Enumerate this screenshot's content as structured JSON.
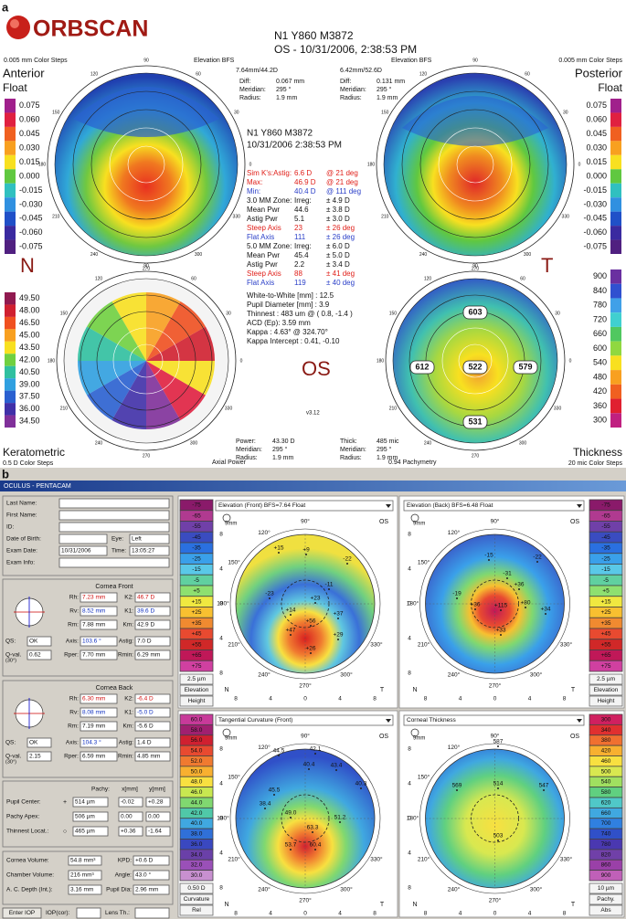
{
  "labels": {
    "a": "a",
    "b": "b"
  },
  "orbscan": {
    "logo": "ORBSCAN",
    "header": [
      "N1 Y860 M3872",
      "OS - 10/31/2006, 2:38:53 PM"
    ],
    "top_left": {
      "steps": "0.005 mm Color Steps",
      "title": "Anterior",
      "subtitle": "Float",
      "ref": "Elevation BFS",
      "bfs": "7.64mm/44.2D"
    },
    "top_right": {
      "steps": "0.005 mm Color Steps",
      "title": "Posterior",
      "subtitle": "Float",
      "ref": "Elevation BFS",
      "bfs": "6.42mm/52.6D"
    },
    "diff_left": [
      [
        "Diff:",
        "0.067 mm"
      ],
      [
        "Meridian:",
        "295 °"
      ],
      [
        "Radius:",
        "1.9 mm"
      ]
    ],
    "diff_right": [
      [
        "Diff:",
        "0.131 mm"
      ],
      [
        "Meridian:",
        "295 °"
      ],
      [
        "Radius:",
        "1.9 mm"
      ]
    ],
    "center_header": [
      "N1 Y860 M3872",
      "10/31/2006 2:38:53 PM"
    ],
    "stats": [
      {
        "cells": [
          "Sim K's:Astig:",
          "6.6 D",
          "@ 21 deg"
        ],
        "color": "#e0201a"
      },
      {
        "cells": [
          "Max:",
          "46.9 D",
          "@ 21 deg"
        ],
        "color": "#e0201a"
      },
      {
        "cells": [
          "Min:",
          "40.4 D",
          "@ 111 deg"
        ],
        "color": "#2a3fc8"
      },
      {
        "cells": [
          "3.0 MM Zone:",
          "Irreg:",
          "± 4.9 D"
        ],
        "color": "#111111"
      },
      {
        "cells": [
          "Mean Pwr",
          "44.6",
          "± 3.8 D"
        ],
        "color": "#111111"
      },
      {
        "cells": [
          "Astig Pwr",
          "5.1",
          "± 3.0 D"
        ],
        "color": "#111111"
      },
      {
        "cells": [
          "Steep Axis",
          "23",
          "± 26 deg"
        ],
        "color": "#e0201a"
      },
      {
        "cells": [
          "Flat Axis",
          "111",
          "± 26 deg"
        ],
        "color": "#2a3fc8"
      },
      {
        "cells": [
          "5.0 MM Zone:",
          "Irreg:",
          "± 6.0 D"
        ],
        "color": "#111111"
      },
      {
        "cells": [
          "Mean Pwr",
          "45.4",
          "± 5.0 D"
        ],
        "color": "#111111"
      },
      {
        "cells": [
          "Astig Pwr",
          "2.2",
          "± 3.4 D"
        ],
        "color": "#111111"
      },
      {
        "cells": [
          "Steep Axis",
          "88",
          "± 41 deg"
        ],
        "color": "#e0201a"
      },
      {
        "cells": [
          "Flat Axis",
          "119",
          "± 40 deg"
        ],
        "color": "#2a3fc8"
      }
    ],
    "info": [
      "White-to-White [mm] : 12.5",
      "Pupil Diameter [mm] : 3.9",
      "Thinnest : 483 um @ ( 0.8, -1.4 )",
      "ACD (Ep): 3.59 mm",
      "Kappa : 4.63° @ 324.70°",
      "Kappa Intercept : 0.41, -0.10"
    ],
    "nasal": "N",
    "temporal": "T",
    "eye": "OS",
    "version": "v3.12",
    "bottom_left": {
      "title": "Keratometric",
      "steps": "0.5 D Color Steps",
      "ref": "Axial Power"
    },
    "power": [
      [
        "Power:",
        "43.30 D"
      ],
      [
        "Meridian:",
        "295 °"
      ],
      [
        "Radius:",
        "1.9 mm"
      ]
    ],
    "thick": [
      [
        "Thick:",
        "485 mic"
      ],
      [
        "Meridian:",
        "295 °"
      ],
      [
        "Radius:",
        "1.9 mm"
      ]
    ],
    "bottom_right": {
      "ref": "0.94 Pachymetry",
      "title": "Thickness",
      "steps": "20 mic Color Steps"
    },
    "angles": [
      "0",
      "30",
      "60",
      "90",
      "120",
      "150",
      "180",
      "210",
      "240",
      "270",
      "300",
      "330"
    ],
    "thickness_values": [
      "603",
      "612",
      "522",
      "579",
      "531"
    ],
    "scale_float": {
      "labels": [
        "0.075",
        "0.060",
        "0.045",
        "0.030",
        "0.015",
        "0.000",
        "-0.015",
        "-0.030",
        "-0.045",
        "-0.060",
        "-0.075"
      ],
      "colors": [
        "#a0208c",
        "#e02040",
        "#f06020",
        "#f8a020",
        "#f8e020",
        "#60c840",
        "#30c0c0",
        "#3090e0",
        "#2050c8",
        "#3a2aa0",
        "#502080"
      ]
    },
    "scale_kerat": {
      "labels": [
        "49.50",
        "48.00",
        "46.50",
        "45.00",
        "43.50",
        "42.00",
        "40.50",
        "39.00",
        "37.50",
        "36.00",
        "34.50"
      ],
      "colors": [
        "#901a50",
        "#d02030",
        "#f05020",
        "#f8a020",
        "#f8e020",
        "#70d040",
        "#30c0a0",
        "#30a0e0",
        "#2a60d0",
        "#4030a8",
        "#80309a"
      ]
    },
    "scale_thick": {
      "labels": [
        "900",
        "840",
        "780",
        "720",
        "660",
        "600",
        "540",
        "480",
        "420",
        "360",
        "300"
      ],
      "colors": [
        "#6a30a0",
        "#3050d0",
        "#40a0e8",
        "#40d0d0",
        "#50c860",
        "#90d840",
        "#f8e020",
        "#f8a020",
        "#f06020",
        "#e02030",
        "#c02080"
      ]
    }
  },
  "pentacam": {
    "title": "OCULUS - PENTACAM",
    "patient": [
      [
        {
          "label": "Last Name:"
        }
      ],
      [
        {
          "label": "First Name:"
        }
      ],
      [
        {
          "label": "ID:"
        }
      ],
      [
        {
          "label": "Date of Birth:"
        },
        {
          "label": "Eye:",
          "value": "Left"
        }
      ],
      [
        {
          "label": "Exam Date:",
          "value": "10/31/2006"
        },
        {
          "label": "Time:",
          "value": "13:05:27"
        }
      ],
      [
        {
          "label": "Exam Info:"
        }
      ]
    ],
    "cornea_front": {
      "title": "Cornea Front",
      "rows": [
        [
          {
            "label": "Rh:",
            "value": "7.23 mm",
            "color": "#d01010"
          },
          {
            "label": "K2:",
            "value": "46.7 D",
            "color": "#d01010"
          }
        ],
        [
          {
            "label": "Rv:",
            "value": "8.52 mm",
            "color": "#1030c0"
          },
          {
            "label": "K1:",
            "value": "39.6 D",
            "color": "#1030c0"
          }
        ],
        [
          {
            "label": "Rm:",
            "value": "7.88 mm",
            "color": "#111111"
          },
          {
            "label": "Km:",
            "value": "42.9 D",
            "color": "#111111"
          }
        ],
        [
          {
            "label": "QS:",
            "value": "OK",
            "color": "#111111"
          },
          {
            "label": "Axis:",
            "value": "103.6 °",
            "color": "#1030c0"
          },
          {
            "label": "Astig:",
            "value": "7.0 D",
            "color": "#111111"
          }
        ],
        [
          {
            "label": "Q-val.",
            "label2": "(30°)",
            "value": "0.62",
            "color": "#111111"
          },
          {
            "label": "Rper:",
            "value": "7.70 mm",
            "color": "#111111"
          },
          {
            "label": "Rmin:",
            "value": "6.29 mm",
            "color": "#111111"
          }
        ]
      ]
    },
    "cornea_back": {
      "title": "Cornea Back",
      "rows": [
        [
          {
            "label": "Rh:",
            "value": "6.30 mm",
            "color": "#d01010"
          },
          {
            "label": "K2:",
            "value": "-6.4 D",
            "color": "#d01010"
          }
        ],
        [
          {
            "label": "Rv:",
            "value": "8.08 mm",
            "color": "#1030c0"
          },
          {
            "label": "K1:",
            "value": "-5.0 D",
            "color": "#1030c0"
          }
        ],
        [
          {
            "label": "Rm:",
            "value": "7.19 mm",
            "color": "#111111"
          },
          {
            "label": "Km:",
            "value": "-5.6 D",
            "color": "#111111"
          }
        ],
        [
          {
            "label": "QS:",
            "value": "OK",
            "color": "#111111"
          },
          {
            "label": "Axis:",
            "value": "104.3 °",
            "color": "#1030c0"
          },
          {
            "label": "Astig:",
            "value": "1.4 D",
            "color": "#111111"
          }
        ],
        [
          {
            "label": "Q-val.",
            "label2": "(30°)",
            "value": "2.15",
            "color": "#111111"
          },
          {
            "label": "Rper:",
            "value": "6.59 mm",
            "color": "#111111"
          },
          {
            "label": "Rmin:",
            "value": "4.85 mm",
            "color": "#111111"
          }
        ]
      ]
    },
    "pachy": {
      "header": [
        "Pachy:",
        "x[mm]",
        "y[mm]"
      ],
      "rows": [
        {
          "label": "Pupil Center:",
          "symbol": "+",
          "pachy": "514 µm",
          "x": "-0.02",
          "y": "+0.28"
        },
        {
          "label": "Pachy Apex:",
          "pachy": "506 µm",
          "x": "0.00",
          "y": "0.00"
        },
        {
          "label": "Thinnest Locat.:",
          "symbol": "○",
          "pachy": "465 µm",
          "x": "+0.36",
          "y": "-1.64"
        }
      ]
    },
    "volume": [
      [
        {
          "label": "Cornea Volume:",
          "value": "54.8 mm³"
        },
        {
          "label": "KPD:",
          "value": "+0.6 D"
        }
      ],
      [
        {
          "label": "Chamber Volume:",
          "value": "216 mm³"
        },
        {
          "label": "Angle:",
          "value": "43.0 °"
        }
      ],
      [
        {
          "label": "A. C. Depth (Int.):",
          "value": "3.16 mm"
        },
        {
          "label": "Pupil Dia:",
          "value": "2.96 mm"
        }
      ]
    ],
    "buttons": [
      "Enter IOP",
      "IOP(cor):",
      "Lens Th.:"
    ],
    "angles": [
      "90°",
      "120°",
      "150°",
      "180°",
      "210°",
      "240°",
      "270°",
      "300°",
      "330°"
    ],
    "axis_ticks": [
      "8",
      "4",
      "0",
      "4",
      "8"
    ],
    "nasal": "N",
    "temporal": "T",
    "eye": "OS",
    "zoom": "9mm",
    "maps": [
      {
        "title": "Elevation (Front) BFS=7.64 Float",
        "scale": {
          "labels": [
            "-75",
            "-65",
            "-55",
            "-45",
            "-35",
            "-25",
            "-15",
            "-5",
            "+5",
            "+15",
            "+25",
            "+35",
            "+45",
            "+55",
            "+65",
            "+75"
          ],
          "colors": [
            "#8a1a6a",
            "#b03a90",
            "#7040a8",
            "#3a4cc0",
            "#2a70e0",
            "#3aa0ea",
            "#5ac8e8",
            "#60d0a0",
            "#8ee070",
            "#f0e840",
            "#f8c030",
            "#f08a30",
            "#e84a30",
            "#d02828",
            "#c01858",
            "#d040a0"
          ],
          "footer": [
            "2.5 µm",
            "Elevation",
            "Height"
          ]
        },
        "points": [
          "+15",
          "+9",
          "-22",
          "-23",
          "-11",
          "+23",
          "+14",
          "+56",
          "+37",
          "+47",
          "+29",
          "+26"
        ]
      },
      {
        "title": "Elevation (Back) BFS=6.48 Float",
        "scale": {
          "labels": [
            "-75",
            "-65",
            "-55",
            "-45",
            "-35",
            "-25",
            "-15",
            "-5",
            "+5",
            "+15",
            "+25",
            "+35",
            "+45",
            "+55",
            "+65",
            "+75"
          ],
          "colors": [
            "#8a1a6a",
            "#b03a90",
            "#7040a8",
            "#3a4cc0",
            "#2a70e0",
            "#3aa0ea",
            "#5ac8e8",
            "#60d0a0",
            "#8ee070",
            "#f0e840",
            "#f8c030",
            "#f08a30",
            "#e84a30",
            "#d02828",
            "#c01858",
            "#d040a0"
          ],
          "footer": [
            "2.5 µm",
            "Elevation",
            "Height"
          ]
        },
        "points": [
          "-15",
          "-22",
          "-31",
          "+36",
          "-19",
          "+115",
          "+80",
          "+34",
          "+36",
          "+33"
        ]
      },
      {
        "title": "Tangential Curvature (Front)",
        "scale": {
          "labels": [
            "60.0",
            "58.0",
            "56.0",
            "54.0",
            "52.0",
            "50.0",
            "48.0",
            "46.0",
            "44.0",
            "42.0",
            "40.0",
            "38.0",
            "36.0",
            "34.0",
            "32.0",
            "30.0"
          ],
          "colors": [
            "#c83a9a",
            "#a02070",
            "#d02030",
            "#e84a30",
            "#f07a30",
            "#f8b030",
            "#f8e040",
            "#c8e850",
            "#80d870",
            "#50c8a8",
            "#40a8e0",
            "#3070d8",
            "#3a48c0",
            "#6a40a8",
            "#9a50b8",
            "#c890d0"
          ],
          "footer": [
            "0.50 D",
            "Curvature",
            "Rel"
          ]
        },
        "points": [
          "42.1",
          "43.4",
          "40.4",
          "44.5",
          "45.5",
          "38.4",
          "40.3",
          "51.2",
          "63.3",
          "60.4",
          "53.7",
          "49.0"
        ]
      },
      {
        "title": "Corneal Thickness",
        "scale": {
          "labels": [
            "300",
            "340",
            "380",
            "420",
            "460",
            "500",
            "540",
            "580",
            "620",
            "660",
            "700",
            "740",
            "780",
            "820",
            "860",
            "900"
          ],
          "colors": [
            "#d02060",
            "#e03030",
            "#f07030",
            "#f8b030",
            "#f8e040",
            "#d8e850",
            "#a0e060",
            "#60d080",
            "#50c8c8",
            "#40a8e0",
            "#3080e0",
            "#3050c8",
            "#4a38b0",
            "#7040a8",
            "#9a40a8",
            "#c060b8"
          ],
          "footer": [
            "10 µm",
            "Pachy.",
            "Abs"
          ]
        },
        "points": [
          "587",
          "569",
          "514",
          "547",
          "503"
        ]
      }
    ]
  }
}
